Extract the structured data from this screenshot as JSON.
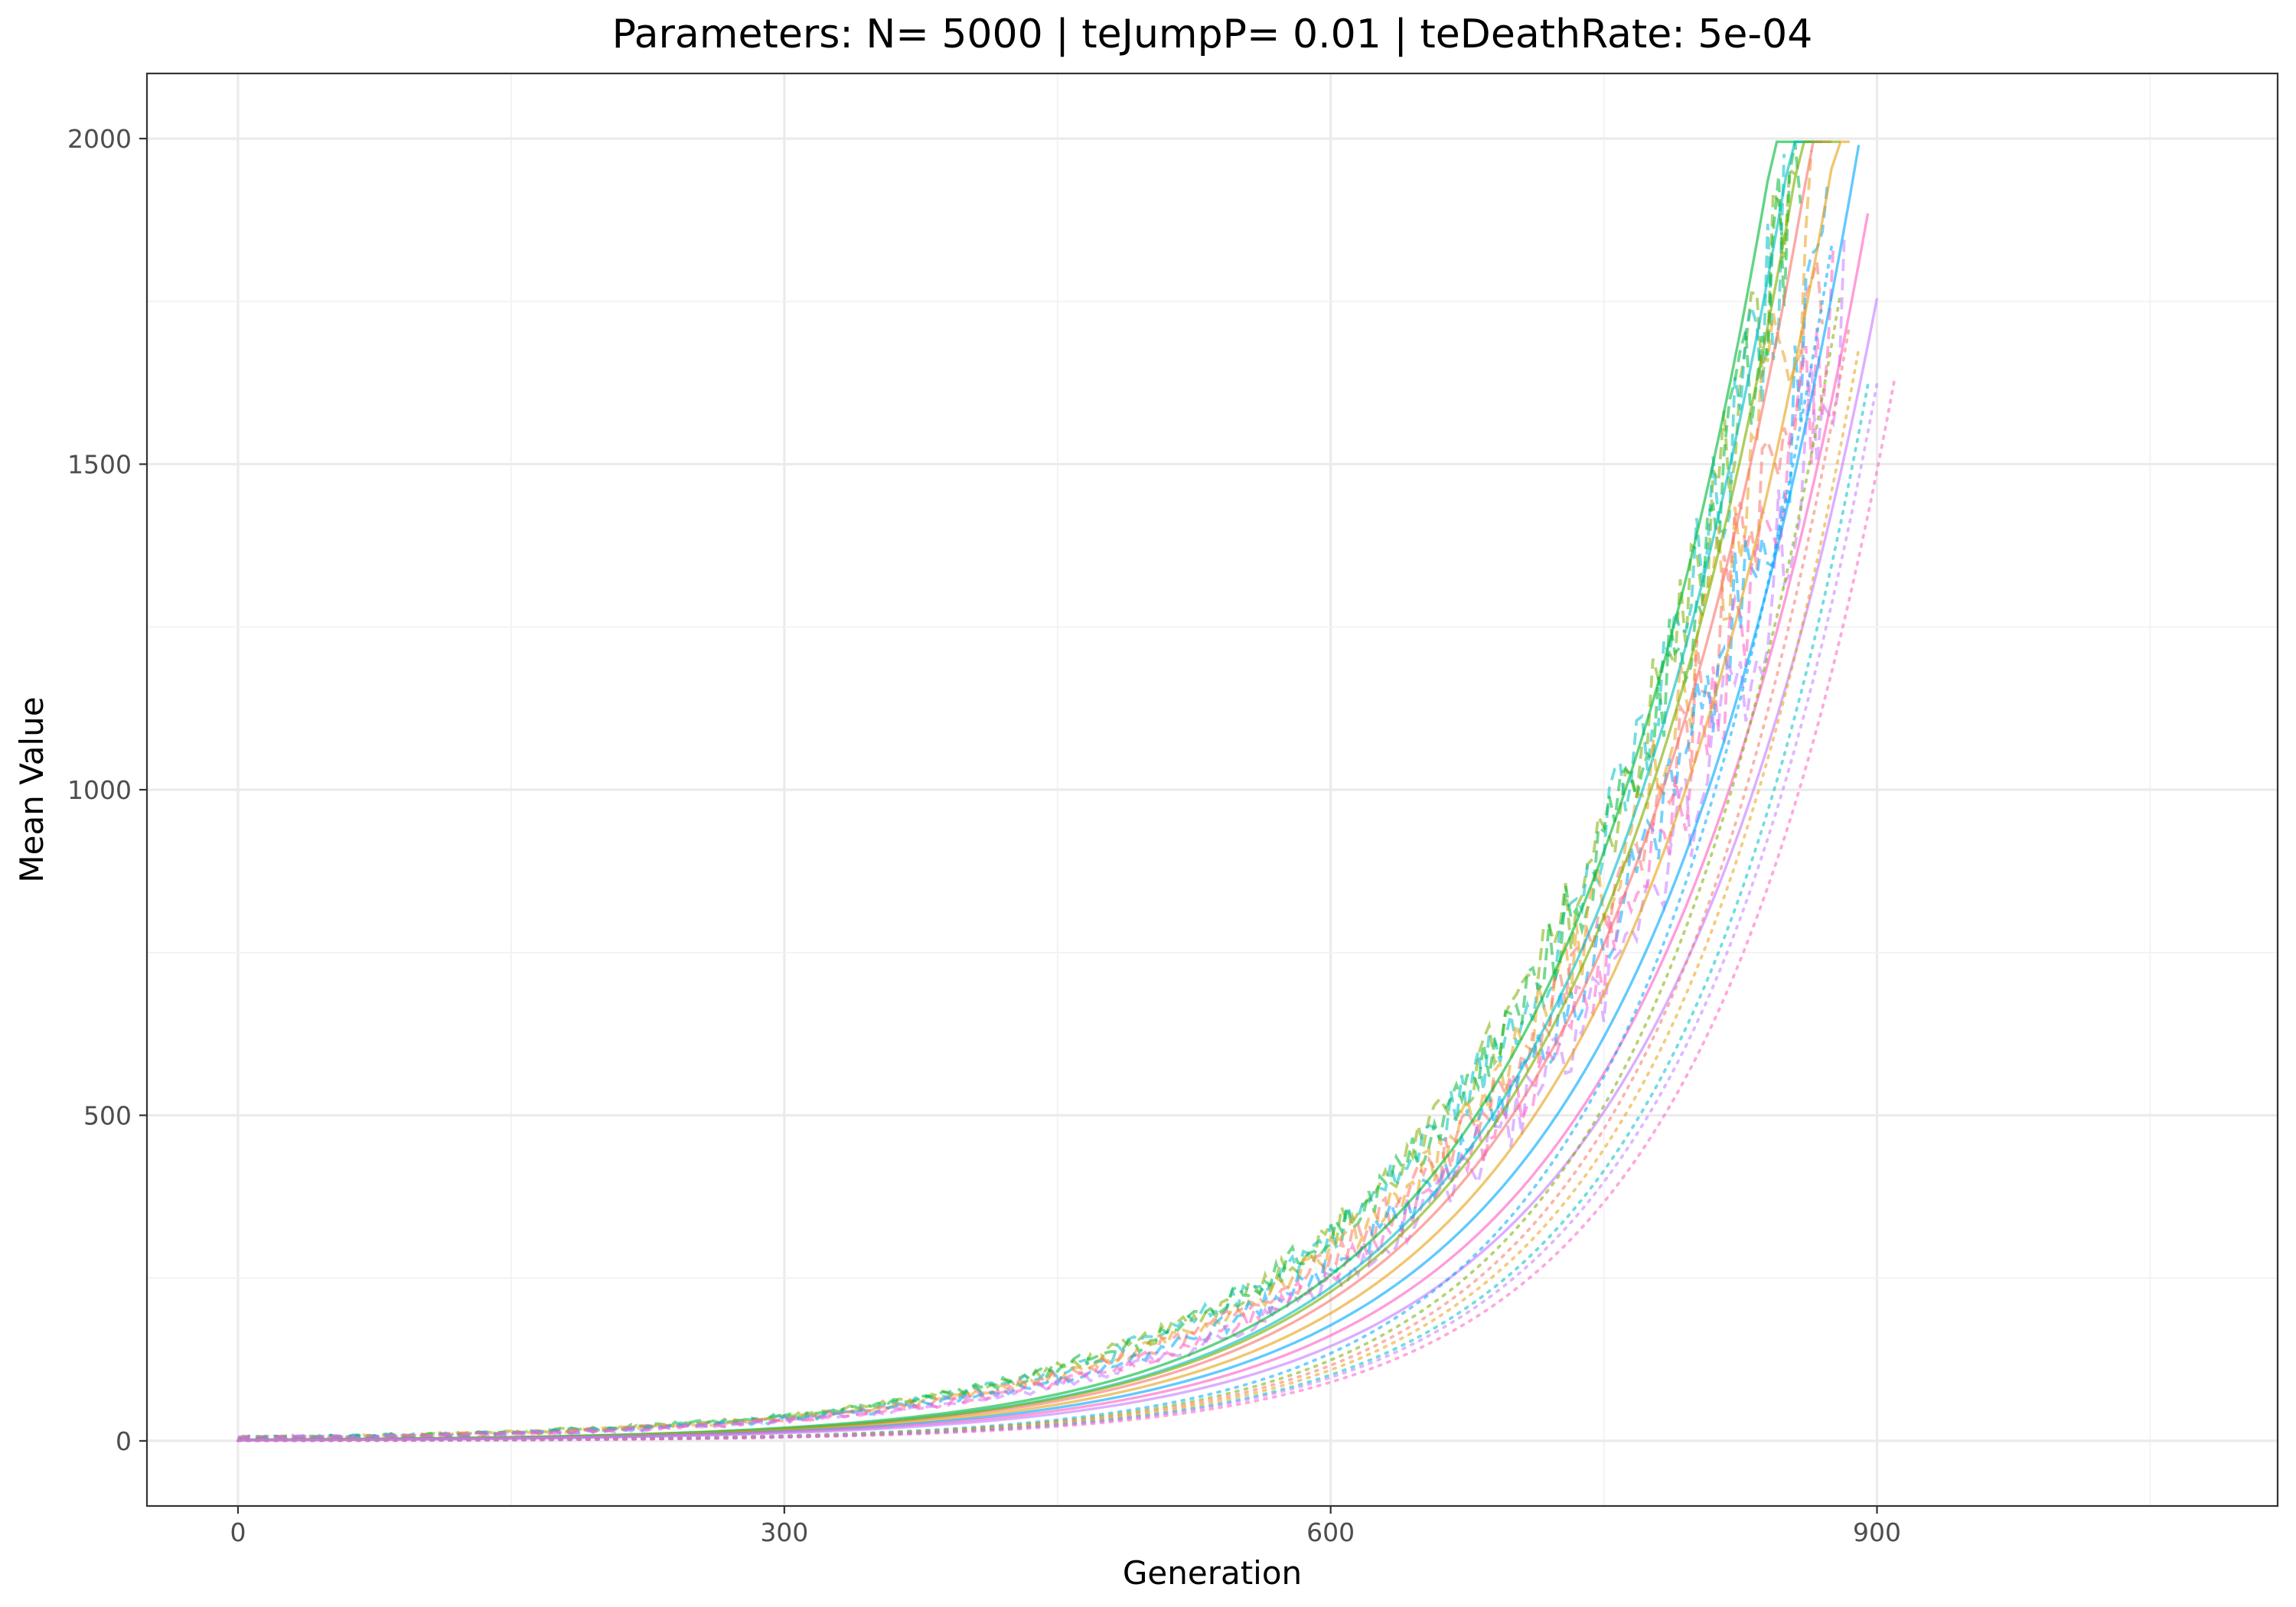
{
  "chart_data": {
    "type": "line",
    "title": "Parameters:   N= 5000  |  teJumpP= 0.01  |  teDeathRate: 5e-04",
    "xlabel": "Generation",
    "ylabel": "Mean Value",
    "xlim": [
      -50,
      1120
    ],
    "ylim": [
      -100,
      2100
    ],
    "x_ticks": [
      0,
      300,
      600,
      900
    ],
    "y_ticks": [
      0,
      500,
      1000,
      1500,
      2000
    ],
    "grid": true,
    "legend": "none",
    "line_groups": [
      {
        "style": "dashed",
        "description_values": "noisy runs",
        "series": [
          {
            "color": "#7CAE00",
            "y0": 4.5,
            "rate": 0.00711,
            "end": 855
          },
          {
            "color": "#00BFC4",
            "y0": 4.4,
            "rate": 0.00712,
            "end": 851
          },
          {
            "color": "#00BA38",
            "y0": 4.6,
            "rate": 0.00706,
            "end": 858
          },
          {
            "color": "#E7A31A",
            "y0": 4.3,
            "rate": 0.00703,
            "end": 865
          },
          {
            "color": "#F8766D",
            "y0": 4.2,
            "rate": 0.007,
            "end": 870
          },
          {
            "color": "#00A9FF",
            "y0": 4.1,
            "rate": 0.00697,
            "end": 875
          },
          {
            "color": "#C77CFF",
            "y0": 3.8,
            "rate": 0.00695,
            "end": 882
          },
          {
            "color": "#FF61C3",
            "y0": 3.9,
            "rate": 0.00698,
            "end": 878
          }
        ]
      },
      {
        "style": "solid",
        "series": [
          {
            "color": "#00BA38",
            "y0": 1.6,
            "rate": 0.00845,
            "end": 867
          },
          {
            "color": "#00BFC4",
            "y0": 1.5,
            "rate": 0.00843,
            "end": 872
          },
          {
            "color": "#F8766D",
            "y0": 1.4,
            "rate": 0.0084,
            "end": 878
          },
          {
            "color": "#7CAE00",
            "y0": 1.5,
            "rate": 0.00838,
            "end": 880
          },
          {
            "color": "#E7A31A",
            "y0": 1.3,
            "rate": 0.00836,
            "end": 885
          },
          {
            "color": "#00A9FF",
            "y0": 1.2,
            "rate": 0.00833,
            "end": 890
          },
          {
            "color": "#FF61C3",
            "y0": 1.1,
            "rate": 0.00832,
            "end": 895
          },
          {
            "color": "#C77CFF",
            "y0": 1.0,
            "rate": 0.0083,
            "end": 902
          }
        ]
      },
      {
        "style": "dotted",
        "series": [
          {
            "color": "#00A9FF",
            "y0": 0.45,
            "rate": 0.0095,
            "end": 878
          },
          {
            "color": "#7CAE00",
            "y0": 0.42,
            "rate": 0.00948,
            "end": 883
          },
          {
            "color": "#F8766D",
            "y0": 0.4,
            "rate": 0.00945,
            "end": 888
          },
          {
            "color": "#E7A31A",
            "y0": 0.38,
            "rate": 0.00943,
            "end": 893
          },
          {
            "color": "#00BFC4",
            "y0": 0.36,
            "rate": 0.0094,
            "end": 898
          },
          {
            "color": "#C77CFF",
            "y0": 0.35,
            "rate": 0.00938,
            "end": 903
          },
          {
            "color": "#FF61C3",
            "y0": 0.33,
            "rate": 0.00935,
            "end": 910
          }
        ]
      }
    ]
  }
}
